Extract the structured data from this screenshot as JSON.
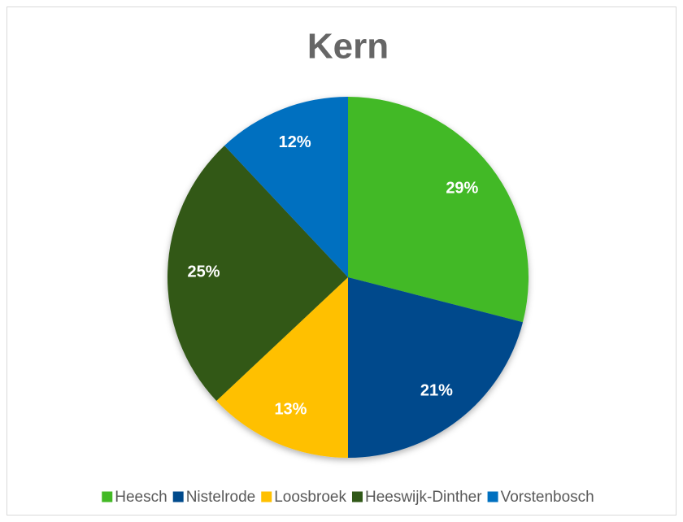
{
  "chart_data": {
    "type": "pie",
    "title": "Kern",
    "categories": [
      "Heesch",
      "Nistelrode",
      "Loosbroek",
      "Heeswijk-Dinther",
      "Vorstenbosch"
    ],
    "values": [
      29,
      21,
      13,
      25,
      12
    ],
    "value_labels": [
      "29%",
      "21%",
      "13%",
      "25%",
      "12%"
    ],
    "colors": [
      "#43b925",
      "#004a8c",
      "#ffc000",
      "#305818",
      "#0070c0"
    ],
    "legend": "bottom"
  }
}
